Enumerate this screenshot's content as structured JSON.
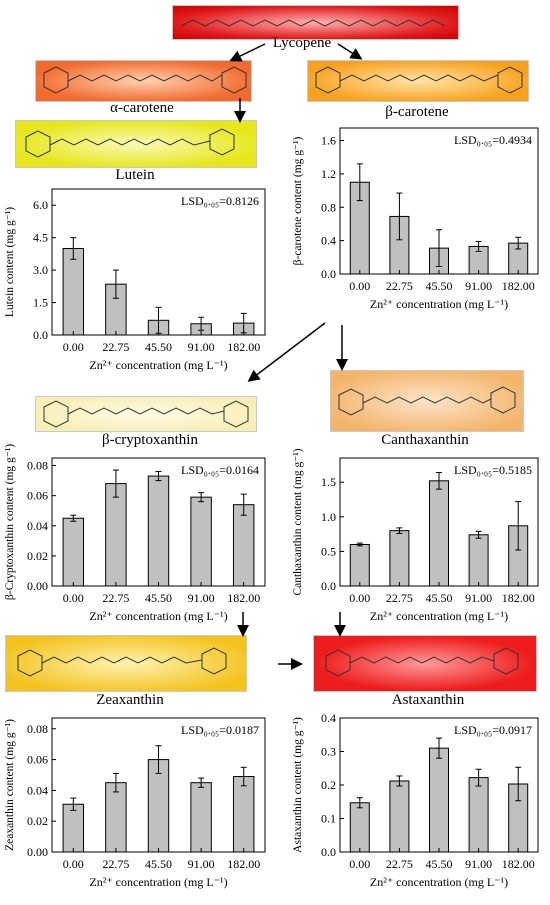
{
  "pathway": {
    "lycopene": "Lycopene",
    "alpha_carotene": "α-carotene",
    "beta_carotene": "β-carotene",
    "lutein": "Lutein",
    "beta_cryptoxanthin": "β-cryptoxanthin",
    "canthaxanthin": "Canthaxanthin",
    "zeaxanthin": "Zeaxanthin",
    "astaxanthin": "Astaxanthin"
  },
  "colors": {
    "lycopene": "#e0191a",
    "alpha_carotene": "#f26a2d",
    "beta_carotene": "#f7a21f",
    "lutein": "#e6e61a",
    "beta_cryptoxanthin": "#f7eeb5",
    "canthaxanthin": "#f3b46a",
    "zeaxanthin": "#f3c21c",
    "astaxanthin": "#ee1c1c",
    "bar_fill": "#c0c0c0"
  },
  "chart_data": [
    {
      "id": "lutein",
      "type": "bar",
      "categories": [
        "0.00",
        "22.75",
        "45.50",
        "91.00",
        "182.00"
      ],
      "values": [
        4.0,
        2.35,
        0.68,
        0.52,
        0.55
      ],
      "errors": [
        0.5,
        0.65,
        0.6,
        0.3,
        0.45
      ],
      "ylim": [
        0,
        6.75
      ],
      "yticks": [
        "0.0",
        "1.5",
        "3.0",
        "4.5",
        "6.0"
      ],
      "ytick_values": [
        0,
        1.5,
        3.0,
        4.5,
        6.0
      ],
      "ylabel": "Lutein content (mg g⁻¹)",
      "xlabel": "Zn²⁺ concentration  (mg L⁻¹)",
      "lsd": "LSD₀.₀₅=0.8126"
    },
    {
      "id": "beta_carotene",
      "type": "bar",
      "categories": [
        "0.00",
        "22.75",
        "45.50",
        "91.00",
        "182.00"
      ],
      "values": [
        1.1,
        0.69,
        0.31,
        0.33,
        0.37
      ],
      "errors": [
        0.22,
        0.28,
        0.22,
        0.06,
        0.07
      ],
      "ylim": [
        0,
        1.75
      ],
      "yticks": [
        "0.0",
        "0.4",
        "0.8",
        "1.2",
        "1.6"
      ],
      "ytick_values": [
        0,
        0.4,
        0.8,
        1.2,
        1.6
      ],
      "ylabel": "β-carotene content (mg g⁻¹)",
      "xlabel": "Zn²⁺ concentration  (mg L⁻¹)",
      "lsd": "LSD₀.₀₅=0.4934"
    },
    {
      "id": "beta_cryptoxanthin",
      "type": "bar",
      "categories": [
        "0.00",
        "22.75",
        "45.50",
        "91.00",
        "182.00"
      ],
      "values": [
        0.045,
        0.068,
        0.073,
        0.059,
        0.054
      ],
      "errors": [
        0.002,
        0.009,
        0.003,
        0.003,
        0.007
      ],
      "ylim": [
        0,
        0.085
      ],
      "yticks": [
        "0.00",
        "0.02",
        "0.04",
        "0.06",
        "0.08"
      ],
      "ytick_values": [
        0,
        0.02,
        0.04,
        0.06,
        0.08
      ],
      "ylabel": "β-Cryptoxanthin content (mg g⁻¹)",
      "xlabel": "Zn²⁺ concentration  (mg L⁻¹)",
      "lsd": "LSD₀.₀₅=0.0164"
    },
    {
      "id": "canthaxanthin",
      "type": "bar",
      "categories": [
        "0.00",
        "22.75",
        "45.50",
        "91.00",
        "182.00"
      ],
      "values": [
        0.6,
        0.8,
        1.52,
        0.74,
        0.87
      ],
      "errors": [
        0.02,
        0.04,
        0.12,
        0.05,
        0.35
      ],
      "ylim": [
        0,
        1.85
      ],
      "yticks": [
        "0.0",
        "0.5",
        "1.0",
        "1.5"
      ],
      "ytick_values": [
        0,
        0.5,
        1.0,
        1.5
      ],
      "ylabel": "Canthaxanthin content (mg g⁻¹)",
      "xlabel": "Zn²⁺ concentration  (mg L⁻¹)",
      "lsd": "LSD₀.₀₅=0.5185"
    },
    {
      "id": "zeaxanthin",
      "type": "bar",
      "categories": [
        "0.00",
        "22.75",
        "45.50",
        "91.00",
        "182.00"
      ],
      "values": [
        0.031,
        0.045,
        0.06,
        0.045,
        0.049
      ],
      "errors": [
        0.004,
        0.006,
        0.009,
        0.003,
        0.006
      ],
      "ylim": [
        0,
        0.087
      ],
      "yticks": [
        "0.00",
        "0.02",
        "0.04",
        "0.06",
        "0.08"
      ],
      "ytick_values": [
        0,
        0.02,
        0.04,
        0.06,
        0.08
      ],
      "ylabel": "Zeaxanthin content (mg g⁻¹)",
      "xlabel": "Zn²⁺ concentration  (mg L⁻¹)",
      "lsd": "LSD₀.₀₅=0.0187"
    },
    {
      "id": "astaxanthin",
      "type": "bar",
      "categories": [
        "0.00",
        "22.75",
        "45.50",
        "91.00",
        "182.00"
      ],
      "values": [
        0.147,
        0.212,
        0.31,
        0.222,
        0.203
      ],
      "errors": [
        0.015,
        0.015,
        0.03,
        0.025,
        0.05
      ],
      "ylim": [
        0,
        0.4
      ],
      "yticks": [
        "0.0",
        "0.1",
        "0.2",
        "0.3",
        "0.4"
      ],
      "ytick_values": [
        0,
        0.1,
        0.2,
        0.3,
        0.4
      ],
      "ylabel": "Astaxanthin content (mg g⁻¹)",
      "xlabel": "Zn²⁺ concentration  (mg L⁻¹)",
      "lsd": "LSD₀.₀₅=0.0917"
    }
  ]
}
